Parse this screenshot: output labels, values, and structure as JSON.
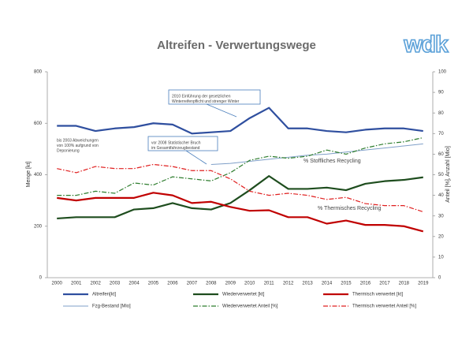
{
  "chart_data": {
    "type": "line",
    "title": "Altreifen - Verwertungswege",
    "logo": "wdk",
    "y_label": "Menge [kt]",
    "y2_label": "Anteil [%], Anzahl [Mio]",
    "categories": [
      "2000",
      "2001",
      "2002",
      "2003",
      "2004",
      "2005",
      "2006",
      "2007",
      "2008",
      "2009",
      "2010",
      "2011",
      "2012",
      "2013",
      "2014",
      "2015",
      "2016",
      "2017",
      "2018",
      "2019"
    ],
    "ylim": [
      0,
      800
    ],
    "yticks": [
      0,
      200,
      400,
      600,
      800
    ],
    "y2lim": [
      0,
      100
    ],
    "y2ticks": [
      0,
      10,
      20,
      30,
      40,
      50,
      60,
      70,
      80,
      90,
      100
    ],
    "grid": false,
    "legend": "bottom",
    "series": [
      {
        "name": "Altreifen[kt]",
        "color": "#2f4f9f",
        "width": 2.2,
        "style": "solid",
        "values": [
          590,
          590,
          570,
          580,
          585,
          600,
          595,
          560,
          565,
          570,
          620,
          660,
          580,
          580,
          570,
          565,
          575,
          580,
          580,
          570
        ]
      },
      {
        "name": "Wiederverwertet [kt]",
        "color": "#1e4d1e",
        "width": 2.2,
        "style": "solid",
        "values": [
          230,
          235,
          235,
          235,
          265,
          270,
          290,
          270,
          265,
          290,
          340,
          395,
          345,
          345,
          350,
          340,
          365,
          375,
          380,
          390
        ]
      },
      {
        "name": "Thermisch verwertet [kt]",
        "color": "#c00000",
        "width": 2.2,
        "style": "solid",
        "values": [
          310,
          300,
          310,
          310,
          310,
          330,
          320,
          290,
          295,
          275,
          260,
          262,
          235,
          235,
          210,
          222,
          205,
          205,
          200,
          180
        ]
      },
      {
        "name": "Fzg-Bestand [Mio]",
        "color": "#7f9fc8",
        "width": 1,
        "style": "solid",
        "axis": "y2",
        "values": [
          null,
          null,
          null,
          null,
          null,
          null,
          null,
          null,
          55,
          55.5,
          56.5,
          57.5,
          58.5,
          59.5,
          60,
          61,
          62,
          63,
          64,
          65
        ]
      },
      {
        "name": "Wiederverwertet Anteil [%]",
        "color": "#2e7d2e",
        "width": 1.2,
        "style": "dashdot",
        "axis": "y2",
        "values": [
          40,
          40,
          42,
          41,
          46,
          45,
          49,
          48,
          47,
          51,
          57,
          59,
          58,
          59,
          62,
          60,
          63,
          65,
          66,
          68
        ]
      },
      {
        "name": "Thermisch verwertet Anteil [%]",
        "color": "#e02020",
        "width": 1.2,
        "style": "dashdot",
        "axis": "y2",
        "values": [
          53,
          51,
          54,
          53,
          53,
          55,
          54,
          52,
          52,
          48,
          42,
          40,
          41,
          40,
          38,
          39,
          36,
          35,
          35,
          32
        ]
      }
    ],
    "annotations": [
      {
        "lines": [
          "bis 2003 Abweichungen",
          "von 100% aufgrund von",
          "Deponierung"
        ],
        "box": false
      },
      {
        "lines": [
          "2010 Einführung der gesetzlichen",
          "Winterreifenpflicht und strenger Winter"
        ],
        "box": true
      },
      {
        "lines": [
          "vor 2008 Statistischer Bruch",
          "im Gesamtfahrzeugbestand"
        ],
        "box": true
      },
      {
        "lines": [
          "% Stoffliches Recycling"
        ],
        "box": false
      },
      {
        "lines": [
          "% Thermisches Recycling"
        ],
        "box": false
      }
    ]
  }
}
